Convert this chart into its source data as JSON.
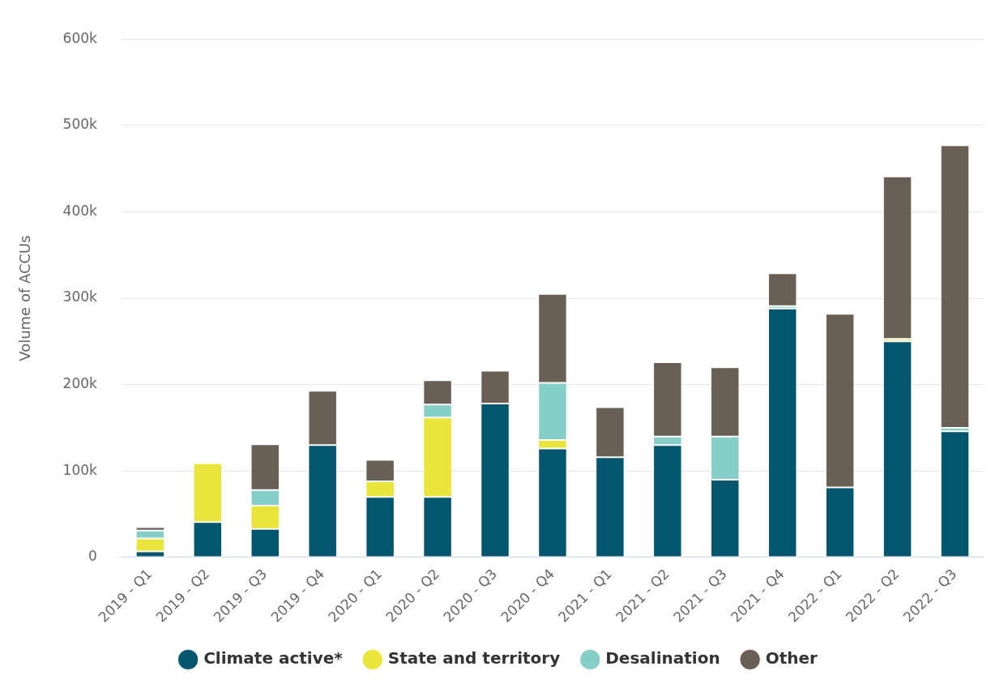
{
  "chart_data": {
    "type": "bar",
    "stacked": true,
    "ylabel": "Volume of ACCUs",
    "categories": [
      "2019 - Q1",
      "2019 - Q2",
      "2019 - Q3",
      "2019 - Q4",
      "2020 - Q1",
      "2020 - Q2",
      "2020 - Q3",
      "2020 - Q4",
      "2021 - Q1",
      "2021 - Q2",
      "2021 - Q3",
      "2021 - Q4",
      "2022 - Q1",
      "2022 - Q2",
      "2022 - Q3"
    ],
    "series": [
      {
        "name": "Climate active*",
        "color": "#04566e",
        "values": [
          7000,
          41000,
          33000,
          130000,
          70000,
          70000,
          178000,
          126000,
          116000,
          130000,
          90000,
          288000,
          81000,
          250000,
          146000
        ]
      },
      {
        "name": "State and territory",
        "color": "#e9e53a",
        "values": [
          15000,
          68000,
          27000,
          null,
          18000,
          92000,
          null,
          10000,
          null,
          null,
          null,
          null,
          null,
          3000,
          null
        ]
      },
      {
        "name": "Desalination",
        "color": "#85cfc8",
        "values": [
          9000,
          null,
          18000,
          null,
          null,
          15000,
          null,
          66000,
          null,
          10000,
          50000,
          3000,
          null,
          null,
          4000
        ]
      },
      {
        "name": "Other",
        "color": "#6a5f55",
        "values": [
          4000,
          null,
          53000,
          63000,
          25000,
          28000,
          38000,
          103000,
          58000,
          86000,
          80000,
          38000,
          201000,
          188000,
          327000
        ]
      }
    ],
    "ylim": [
      0,
      600000
    ],
    "yticks": [
      {
        "value": 0,
        "label": "0"
      },
      {
        "value": 100000,
        "label": "100k"
      },
      {
        "value": 200000,
        "label": "200k"
      },
      {
        "value": 300000,
        "label": "300k"
      },
      {
        "value": 400000,
        "label": "400k"
      },
      {
        "value": 500000,
        "label": "500k"
      },
      {
        "value": 600000,
        "label": "600k"
      }
    ],
    "grid": "y",
    "legend": "bottom"
  }
}
